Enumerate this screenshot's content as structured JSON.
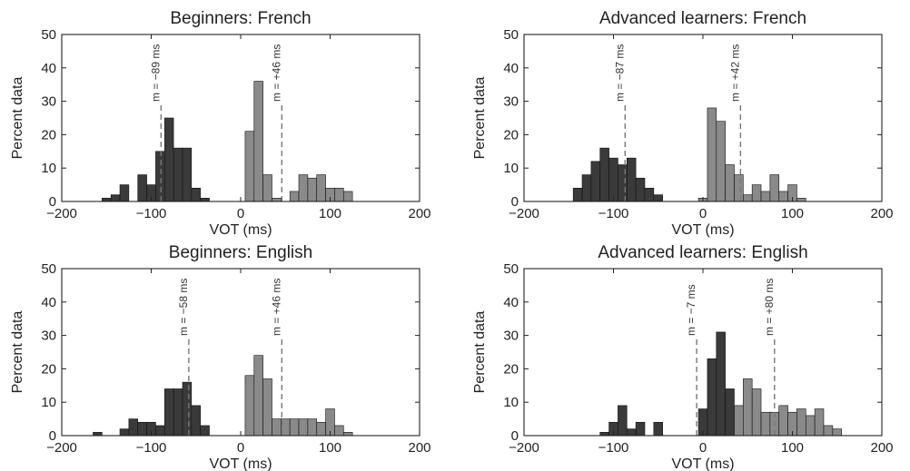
{
  "style": {
    "dark_bar_color": "#3a3a3a",
    "light_bar_color": "#8a8a8a",
    "mean_line_color": "#777777"
  },
  "chart_data": [
    {
      "type": "bar",
      "title": "Beginners: French",
      "xlabel": "VOT (ms)",
      "ylabel": "Percent data",
      "xlim": [
        -200,
        200
      ],
      "ylim": [
        0,
        50
      ],
      "xticks": [
        -200,
        -100,
        0,
        100,
        200
      ],
      "yticks": [
        0,
        10,
        20,
        30,
        40,
        50
      ],
      "grid": false,
      "series": [
        {
          "color": "#3a3a3a",
          "x": [
            -150,
            -140,
            -130,
            -110,
            -100,
            -90,
            -80,
            -70,
            -60,
            -50,
            -40
          ],
          "values": [
            1,
            2,
            5,
            8,
            5,
            15,
            25,
            16,
            16,
            4,
            1
          ]
        },
        {
          "color": "#8a8a8a",
          "x": [
            10,
            20,
            30,
            40,
            60,
            70,
            80,
            90,
            100,
            110,
            120
          ],
          "values": [
            21,
            36,
            8,
            1,
            3,
            8,
            7,
            8,
            4,
            4,
            3
          ]
        }
      ],
      "mean_lines": [
        {
          "x": -89,
          "label": "m = −89 ms"
        },
        {
          "x": 46,
          "label": "m = +46 ms"
        }
      ]
    },
    {
      "type": "bar",
      "title": "Advanced learners: French",
      "xlabel": "VOT (ms)",
      "ylabel": "Percent data",
      "xlim": [
        -200,
        200
      ],
      "ylim": [
        0,
        50
      ],
      "xticks": [
        -200,
        -100,
        0,
        100,
        200
      ],
      "yticks": [
        0,
        10,
        20,
        30,
        40,
        50
      ],
      "grid": false,
      "series": [
        {
          "color": "#3a3a3a",
          "x": [
            -140,
            -130,
            -120,
            -110,
            -100,
            -90,
            -80,
            -70,
            -60,
            -50
          ],
          "values": [
            4,
            8,
            12,
            16,
            13,
            11,
            13,
            7,
            4,
            2
          ]
        },
        {
          "color": "#8a8a8a",
          "x": [
            0,
            10,
            20,
            30,
            40,
            50,
            60,
            70,
            80,
            90,
            100,
            110
          ],
          "values": [
            1,
            28,
            24,
            11,
            8,
            2,
            5,
            3,
            8,
            3,
            5,
            1
          ]
        }
      ],
      "mean_lines": [
        {
          "x": -87,
          "label": "m = −87 ms"
        },
        {
          "x": 42,
          "label": "m = +42 ms"
        }
      ]
    },
    {
      "type": "bar",
      "title": "Beginners: English",
      "xlabel": "VOT (ms)",
      "ylabel": "Percent data",
      "xlim": [
        -200,
        200
      ],
      "ylim": [
        0,
        50
      ],
      "xticks": [
        -200,
        -100,
        0,
        100,
        200
      ],
      "yticks": [
        0,
        10,
        20,
        30,
        40,
        50
      ],
      "grid": false,
      "series": [
        {
          "color": "#3a3a3a",
          "x": [
            -160,
            -130,
            -120,
            -110,
            -100,
            -90,
            -80,
            -70,
            -60,
            -50,
            -40
          ],
          "values": [
            1,
            2,
            5,
            4,
            4,
            3,
            14,
            14,
            16,
            9,
            3
          ]
        },
        {
          "color": "#8a8a8a",
          "x": [
            10,
            20,
            30,
            40,
            50,
            60,
            70,
            80,
            90,
            100,
            110,
            120
          ],
          "values": [
            18,
            24,
            17,
            5,
            5,
            5,
            5,
            5,
            4,
            8,
            3,
            1
          ]
        }
      ],
      "mean_lines": [
        {
          "x": -58,
          "label": "m = −58 ms"
        },
        {
          "x": 46,
          "label": "m = +46 ms"
        }
      ]
    },
    {
      "type": "bar",
      "title": "Advanced learners: English",
      "xlabel": "VOT (ms)",
      "ylabel": "Percent data",
      "xlim": [
        -200,
        200
      ],
      "ylim": [
        0,
        50
      ],
      "xticks": [
        -200,
        -100,
        0,
        100,
        200
      ],
      "yticks": [
        0,
        10,
        20,
        30,
        40,
        50
      ],
      "grid": false,
      "series": [
        {
          "color": "#3a3a3a",
          "x": [
            -110,
            -100,
            -90,
            -80,
            -70,
            -50,
            0,
            10,
            20,
            30
          ],
          "values": [
            1,
            4,
            9,
            2,
            4,
            4,
            8,
            23,
            31,
            14
          ]
        },
        {
          "color": "#8a8a8a",
          "x": [
            40,
            50,
            60,
            70,
            80,
            90,
            100,
            110,
            120,
            130,
            140,
            150
          ],
          "values": [
            9,
            17,
            14,
            7,
            7,
            9,
            7,
            8,
            6,
            8,
            3,
            2
          ]
        }
      ],
      "mean_lines": [
        {
          "x": -7,
          "label": "m = −7 ms"
        },
        {
          "x": 80,
          "label": "m = +80 ms"
        }
      ]
    }
  ]
}
